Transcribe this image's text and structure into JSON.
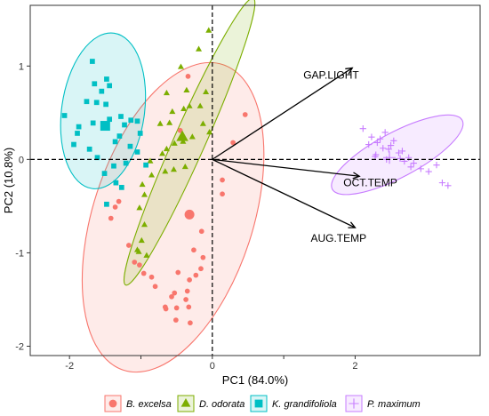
{
  "chart_data": {
    "type": "scatter",
    "xlabel": "PC1 (84.0%)",
    "ylabel": "PC2 (10.8%)",
    "xlim": [
      -2.55,
      3.75
    ],
    "ylim": [
      -2.1,
      1.65
    ],
    "x_ticks": [
      -2,
      -1,
      0,
      1,
      2
    ],
    "y_ticks": [
      -2,
      -1,
      0,
      1
    ],
    "x_tick_labels": [
      "-2",
      "",
      "0",
      "",
      "2"
    ],
    "y_tick_labels": [
      "-2",
      "-1",
      "0",
      "1"
    ],
    "grid": false,
    "reference_lines": {
      "x": 0,
      "y": 0,
      "style": "dashed"
    },
    "legend_position": "bottom",
    "series": [
      {
        "name": "B. excelsa",
        "marker": "circle",
        "color": "#F8766D",
        "centroid": [
          -0.32,
          -0.59
        ],
        "ellipse": {
          "center": [
            -0.55,
            -0.62
          ],
          "rx": 1.12,
          "ry": 1.72,
          "rotation_deg": 18
        },
        "points": [
          [
            0.46,
            0.48
          ],
          [
            0.29,
            0.18
          ],
          [
            0.14,
            -0.22
          ],
          [
            0.14,
            -0.37
          ],
          [
            -0.15,
            -0.77
          ],
          [
            -0.26,
            -0.97
          ],
          [
            -0.13,
            -1.05
          ],
          [
            -0.16,
            -1.17
          ],
          [
            -0.48,
            -1.21
          ],
          [
            -0.23,
            -1.24
          ],
          [
            -0.32,
            -1.29
          ],
          [
            -0.35,
            -1.41
          ],
          [
            -0.37,
            -1.5
          ],
          [
            -0.33,
            -1.58
          ],
          [
            -0.53,
            -1.43
          ],
          [
            -0.57,
            -1.47
          ],
          [
            -0.5,
            -1.59
          ],
          [
            -0.66,
            -1.58
          ],
          [
            -0.65,
            -1.6
          ],
          [
            -0.51,
            -1.72
          ],
          [
            -0.31,
            -1.75
          ],
          [
            -0.8,
            -1.36
          ],
          [
            -0.85,
            -1.26
          ],
          [
            -0.96,
            -1.22
          ],
          [
            -1.02,
            -1.13
          ],
          [
            -1.09,
            -1.1
          ],
          [
            -1.17,
            -0.92
          ],
          [
            -1.31,
            -0.45
          ],
          [
            -1.36,
            -0.51
          ],
          [
            -1.42,
            -0.63
          ],
          [
            -0.34,
            0.89
          ],
          [
            -0.45,
            0.31
          ]
        ]
      },
      {
        "name": "D. odorata",
        "marker": "triangle",
        "color": "#7CAE00",
        "centroid": [
          -0.42,
          0.24
        ],
        "ellipse": {
          "center": [
            -0.32,
            0.19
          ],
          "rx": 0.22,
          "ry": 1.68,
          "rotation_deg": 24
        },
        "points": [
          [
            -0.05,
            1.38
          ],
          [
            -0.19,
            1.18
          ],
          [
            -0.44,
            0.99
          ],
          [
            -0.64,
            0.71
          ],
          [
            -0.36,
            0.74
          ],
          [
            -0.09,
            0.72
          ],
          [
            -0.17,
            0.57
          ],
          [
            -0.32,
            0.57
          ],
          [
            -0.4,
            0.54
          ],
          [
            -0.56,
            0.51
          ],
          [
            -0.6,
            0.39
          ],
          [
            -0.73,
            0.38
          ],
          [
            -0.04,
            0.29
          ],
          [
            -0.13,
            0.38
          ],
          [
            -0.28,
            0.24
          ],
          [
            -0.41,
            0.19
          ],
          [
            -0.53,
            0.17
          ],
          [
            -0.64,
            0.11
          ],
          [
            -0.7,
            0.06
          ],
          [
            -0.87,
            -0.02
          ],
          [
            -0.38,
            -0.08
          ],
          [
            -0.54,
            -0.11
          ],
          [
            -0.66,
            -0.13
          ],
          [
            -0.85,
            -0.17
          ],
          [
            -0.98,
            -0.27
          ],
          [
            -0.95,
            -0.38
          ],
          [
            -1.02,
            -0.52
          ],
          [
            -0.95,
            -0.7
          ],
          [
            -0.99,
            -0.87
          ],
          [
            -1.05,
            -0.97
          ],
          [
            -1.03,
            -0.99
          ],
          [
            -0.92,
            -1.03
          ]
        ]
      },
      {
        "name": "K. grandifoliola",
        "marker": "square",
        "color": "#00BFC4",
        "centroid": [
          -1.5,
          0.36
        ],
        "ellipse": {
          "center": [
            -1.53,
            0.52
          ],
          "rx": 0.58,
          "ry": 0.84,
          "rotation_deg": 8
        },
        "points": [
          [
            -1.68,
            1.05
          ],
          [
            -1.65,
            0.81
          ],
          [
            -1.55,
            0.73
          ],
          [
            -1.48,
            0.86
          ],
          [
            -1.44,
            0.79
          ],
          [
            -1.49,
            0.59
          ],
          [
            -1.76,
            0.62
          ],
          [
            -1.62,
            0.61
          ],
          [
            -2.07,
            0.47
          ],
          [
            -1.67,
            0.39
          ],
          [
            -1.87,
            0.35
          ],
          [
            -1.89,
            0.28
          ],
          [
            -1.94,
            0.16
          ],
          [
            -1.72,
            0.11
          ],
          [
            -1.61,
            0.02
          ],
          [
            -1.44,
            0.43
          ],
          [
            -1.36,
            0.19
          ],
          [
            -1.3,
            0.25
          ],
          [
            -1.28,
            0.46
          ],
          [
            -1.23,
            0.37
          ],
          [
            -1.14,
            0.42
          ],
          [
            -1.05,
            0.41
          ],
          [
            -1.01,
            0.28
          ],
          [
            -1.15,
            0.14
          ],
          [
            -1.05,
            0.08
          ],
          [
            -1.21,
            -0.04
          ],
          [
            -1.38,
            -0.07
          ],
          [
            -1.51,
            -0.15
          ],
          [
            -1.35,
            -0.25
          ],
          [
            -0.93,
            -0.06
          ],
          [
            -1.27,
            -0.3
          ],
          [
            -1.48,
            -0.48
          ]
        ]
      },
      {
        "name": "P. maximum",
        "marker": "plus",
        "color": "#C77CFF",
        "centroid": [
          2.48,
          0.02
        ],
        "ellipse": {
          "center": [
            2.59,
            0.05
          ],
          "rx": 1.03,
          "ry": 0.24,
          "rotation_deg": -28
        },
        "points": [
          [
            2.11,
            0.33
          ],
          [
            2.23,
            0.24
          ],
          [
            2.31,
            0.18
          ],
          [
            2.42,
            0.29
          ],
          [
            2.35,
            0.22
          ],
          [
            2.39,
            0.12
          ],
          [
            2.47,
            0.11
          ],
          [
            2.54,
            0.2
          ],
          [
            2.19,
            0.16
          ],
          [
            2.29,
            0.05
          ],
          [
            2.44,
            0.0
          ],
          [
            2.63,
            0.01
          ],
          [
            2.69,
            -0.02
          ],
          [
            2.75,
            0.02
          ],
          [
            2.82,
            -0.04
          ],
          [
            2.92,
            -0.1
          ],
          [
            3.03,
            -0.13
          ],
          [
            3.14,
            -0.06
          ],
          [
            3.22,
            -0.25
          ],
          [
            2.78,
            -0.08
          ],
          [
            2.61,
            0.07
          ],
          [
            2.28,
            0.03
          ],
          [
            2.5,
            0.15
          ],
          [
            2.66,
            0.09
          ],
          [
            3.3,
            -0.28
          ]
        ]
      }
    ],
    "loadings": [
      {
        "label": "GAP.LIGHT",
        "x": 1.96,
        "y": 0.98
      },
      {
        "label": "OCT.TEMP",
        "x": 2.06,
        "y": -0.18
      },
      {
        "label": "AUG.TEMP",
        "x": 2.0,
        "y": -0.73
      }
    ]
  }
}
